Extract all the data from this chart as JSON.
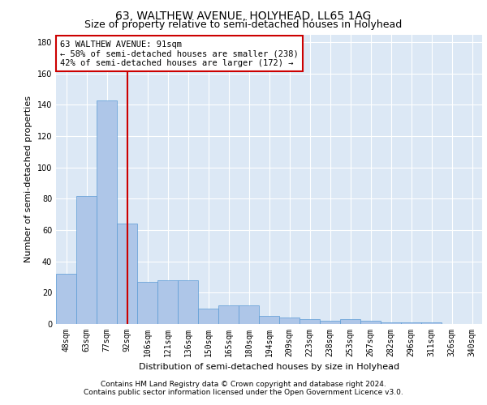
{
  "title": "63, WALTHEW AVENUE, HOLYHEAD, LL65 1AG",
  "subtitle": "Size of property relative to semi-detached houses in Holyhead",
  "xlabel": "Distribution of semi-detached houses by size in Holyhead",
  "ylabel": "Number of semi-detached properties",
  "categories": [
    "48sqm",
    "63sqm",
    "77sqm",
    "92sqm",
    "106sqm",
    "121sqm",
    "136sqm",
    "150sqm",
    "165sqm",
    "180sqm",
    "194sqm",
    "209sqm",
    "223sqm",
    "238sqm",
    "253sqm",
    "267sqm",
    "282sqm",
    "296sqm",
    "311sqm",
    "326sqm",
    "340sqm"
  ],
  "values": [
    32,
    82,
    143,
    64,
    27,
    28,
    28,
    10,
    12,
    12,
    5,
    4,
    3,
    2,
    3,
    2,
    1,
    1,
    1,
    0,
    0
  ],
  "bar_color": "#aec6e8",
  "bar_edge_color": "#5b9bd5",
  "annotation_text_line1": "63 WALTHEW AVENUE: 91sqm",
  "annotation_text_line2": "← 58% of semi-detached houses are smaller (238)",
  "annotation_text_line3": "42% of semi-detached houses are larger (172) →",
  "red_line_color": "#cc0000",
  "annotation_box_color": "#ffffff",
  "annotation_box_edge_color": "#cc0000",
  "footer_line1": "Contains HM Land Registry data © Crown copyright and database right 2024.",
  "footer_line2": "Contains public sector information licensed under the Open Government Licence v3.0.",
  "ylim": [
    0,
    185
  ],
  "background_color": "#dce8f5",
  "grid_color": "#ffffff",
  "fig_background": "#ffffff",
  "title_fontsize": 10,
  "subtitle_fontsize": 9,
  "axis_label_fontsize": 8,
  "tick_fontsize": 7,
  "annotation_fontsize": 7.5,
  "footer_fontsize": 6.5
}
